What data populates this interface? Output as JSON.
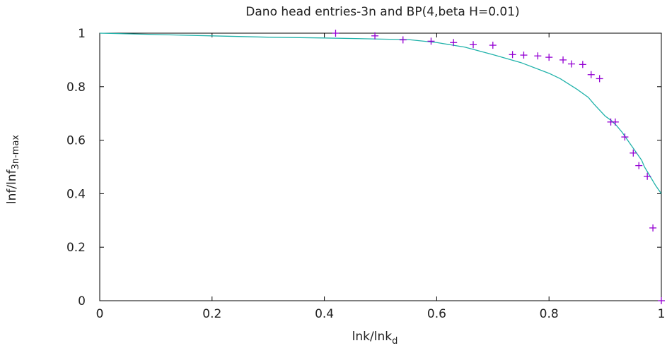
{
  "chart_data": {
    "type": "line",
    "title": "Dano head entries-3n and BP(4,beta H=0.01)",
    "xlabel": {
      "main": "lnk/lnk",
      "sub": "d"
    },
    "ylabel": {
      "main": "lnf/lnf",
      "sub": "3n-max"
    },
    "xlim": [
      0,
      1
    ],
    "ylim": [
      0,
      1
    ],
    "x_ticks": [
      "0",
      "0.2",
      "0.4",
      "0.6",
      "0.8",
      "1"
    ],
    "y_ticks": [
      "0",
      "0.2",
      "0.4",
      "0.6",
      "0.8",
      "1"
    ],
    "grid": false,
    "legend": "none",
    "series": [
      {
        "style": "line",
        "color": "#20b2aa",
        "x": [
          0,
          0.1,
          0.2,
          0.3,
          0.4,
          0.5,
          0.55,
          0.6,
          0.65,
          0.7,
          0.75,
          0.8,
          0.82,
          0.85,
          0.87,
          0.88,
          0.9,
          0.91,
          0.92,
          0.93,
          0.94,
          0.95,
          0.96,
          0.965,
          0.97,
          0.98,
          0.99,
          1.0
        ],
        "y": [
          1.0,
          0.995,
          0.99,
          0.985,
          0.982,
          0.978,
          0.976,
          0.965,
          0.948,
          0.92,
          0.89,
          0.85,
          0.83,
          0.79,
          0.76,
          0.735,
          0.69,
          0.675,
          0.655,
          0.63,
          0.6,
          0.57,
          0.54,
          0.525,
          0.5,
          0.465,
          0.43,
          0.4
        ]
      },
      {
        "style": "points",
        "marker": "+",
        "color": "#9400d3",
        "x": [
          0.42,
          0.49,
          0.54,
          0.59,
          0.63,
          0.665,
          0.7,
          0.735,
          0.755,
          0.78,
          0.8,
          0.825,
          0.84,
          0.86,
          0.875,
          0.89,
          0.91,
          0.918,
          0.935,
          0.95,
          0.96,
          0.975,
          0.985,
          1.0
        ],
        "y": [
          1.0,
          0.99,
          0.975,
          0.97,
          0.965,
          0.957,
          0.955,
          0.92,
          0.918,
          0.915,
          0.91,
          0.9,
          0.885,
          0.883,
          0.845,
          0.83,
          0.668,
          0.668,
          0.612,
          0.552,
          0.505,
          0.465,
          0.272,
          0.0
        ]
      }
    ]
  }
}
